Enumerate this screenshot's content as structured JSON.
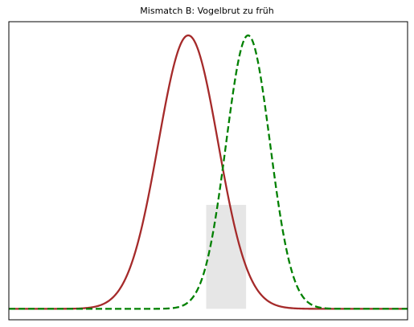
{
  "chart_data": {
    "type": "line",
    "title": "Mismatch B: Vogelbrut zu früh",
    "xlabel": "",
    "ylabel": "",
    "xlim": [
      0,
      100
    ],
    "ylim": [
      -0.04,
      1.05
    ],
    "grid": false,
    "legend": "none",
    "series": [
      {
        "values_note_excluded": true,
        "style": "solid",
        "color": "#a52a2a",
        "mean": 45,
        "sd": 7.5
      },
      {
        "style": "dashed",
        "color": "#008000",
        "mean": 60,
        "sd": 5.5
      }
    ],
    "shaded_region": {
      "x_start": 49.5,
      "x_end": 59.5,
      "color": "#e6e6e6"
    }
  }
}
